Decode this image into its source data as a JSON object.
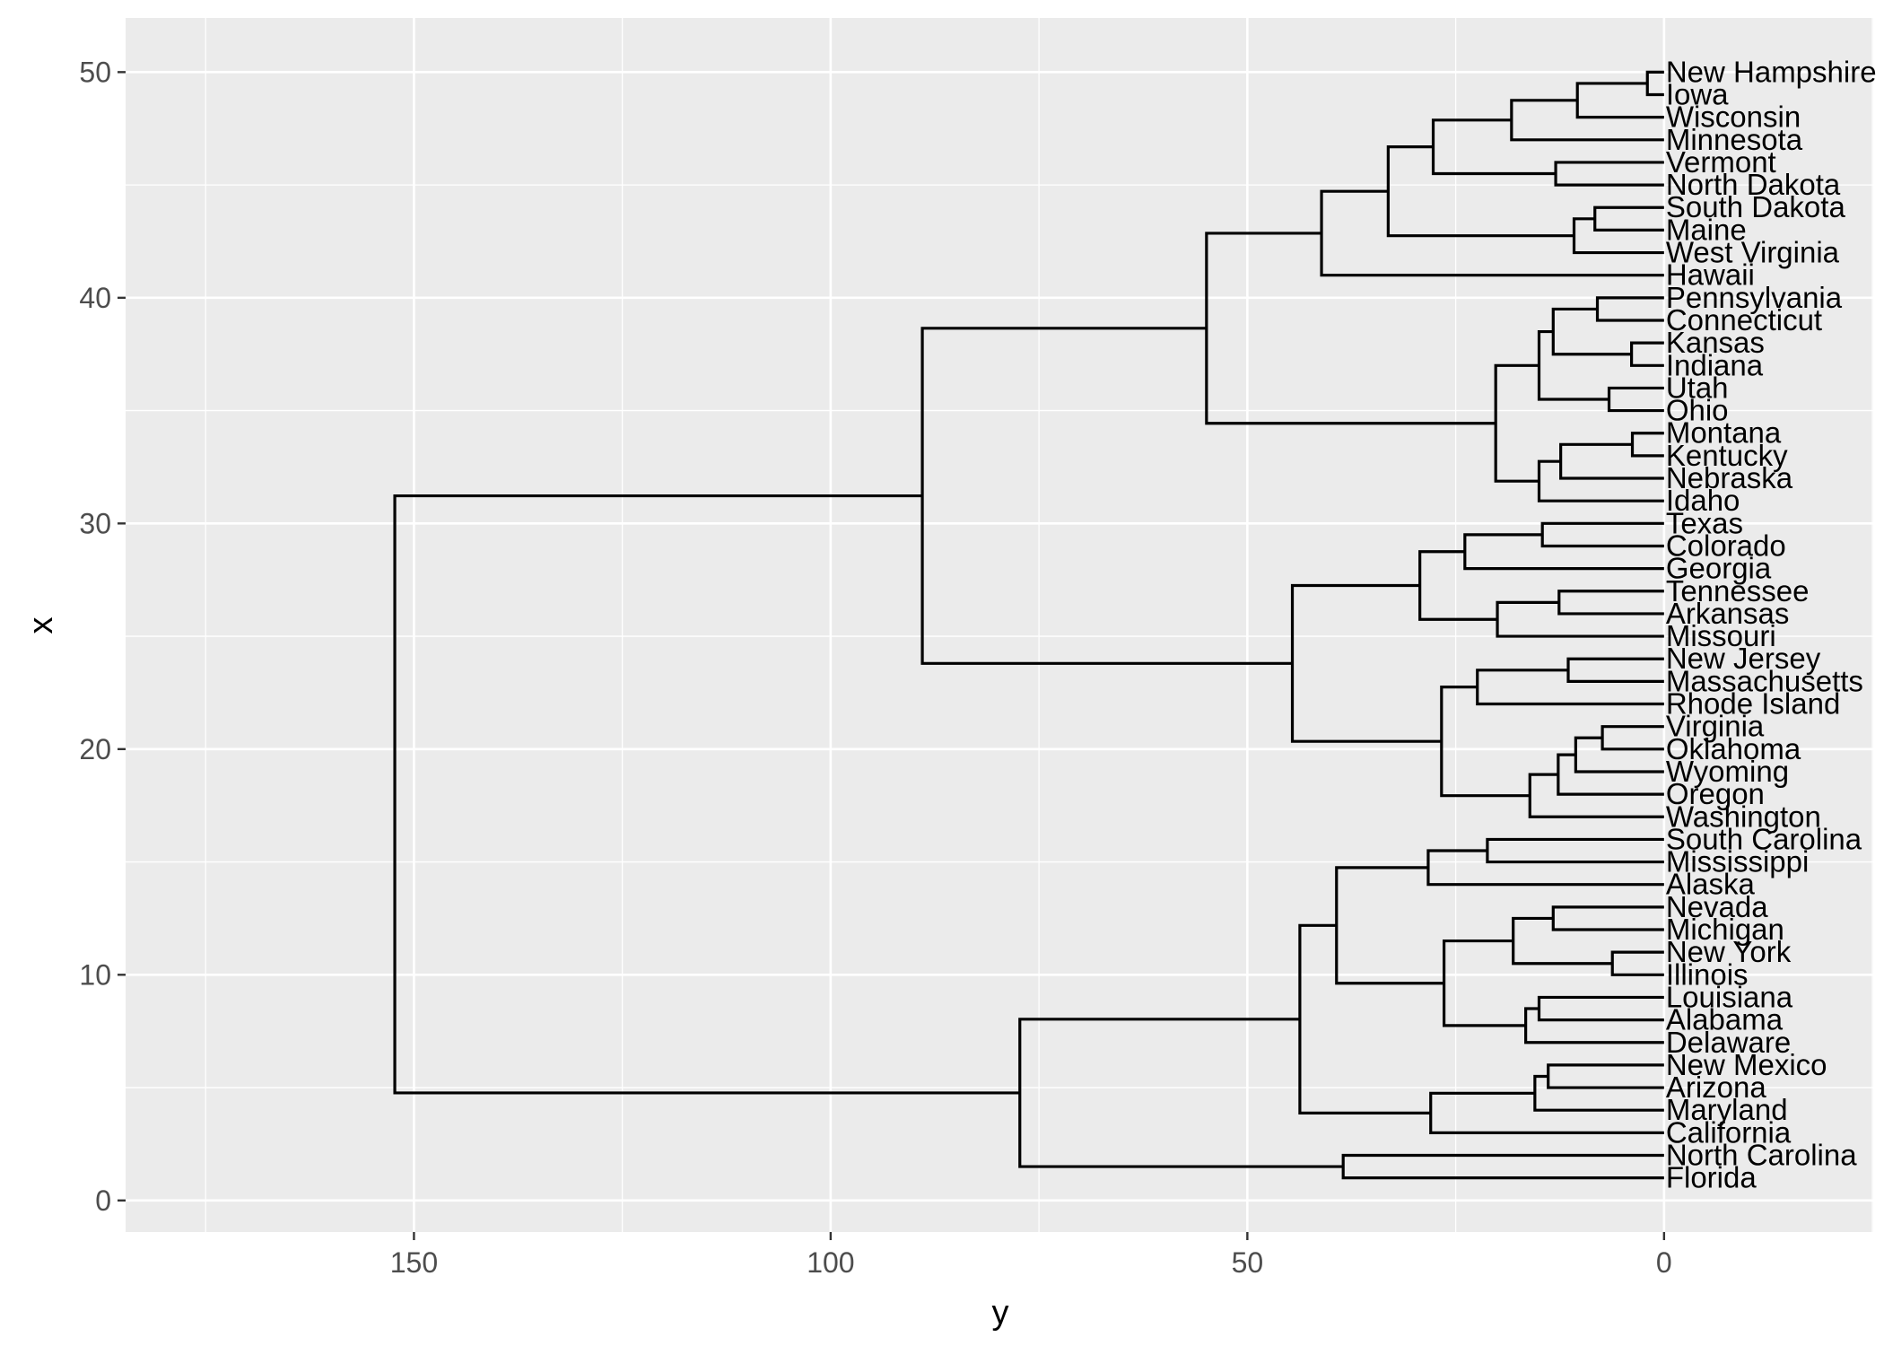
{
  "chart_data": {
    "type": "dendrogram",
    "orientation": "horizontal",
    "xlabel": "y",
    "ylabel": "x",
    "x_ticks": [
      150,
      100,
      50,
      0
    ],
    "y_ticks": [
      0,
      10,
      20,
      30,
      40,
      50
    ],
    "height_axis_reversed": true,
    "grid": true,
    "leaves": [
      "Florida",
      "North Carolina",
      "California",
      "Maryland",
      "Arizona",
      "New Mexico",
      "Delaware",
      "Alabama",
      "Louisiana",
      "Illinois",
      "New York",
      "Michigan",
      "Nevada",
      "Alaska",
      "Mississippi",
      "South Carolina",
      "Washington",
      "Oregon",
      "Wyoming",
      "Oklahoma",
      "Virginia",
      "Rhode Island",
      "Massachusetts",
      "New Jersey",
      "Missouri",
      "Arkansas",
      "Tennessee",
      "Georgia",
      "Colorado",
      "Texas",
      "Idaho",
      "Nebraska",
      "Kentucky",
      "Montana",
      "Ohio",
      "Utah",
      "Indiana",
      "Kansas",
      "Connecticut",
      "Pennsylvania",
      "Hawaii",
      "West Virginia",
      "Maine",
      "South Dakota",
      "North Dakota",
      "Vermont",
      "Minnesota",
      "Wisconsin",
      "Iowa",
      "New Hampshire"
    ],
    "merges": [
      {
        "height": 38.5,
        "children": [
          "Florida",
          "North Carolina"
        ]
      },
      {
        "height": 13.9,
        "children": [
          "Arizona",
          "New Mexico"
        ]
      },
      {
        "height": 15.5,
        "children": [
          "Maryland",
          "m1"
        ]
      },
      {
        "height": 28.0,
        "children": [
          "California",
          "m2"
        ]
      },
      {
        "height": 15.0,
        "children": [
          "Alabama",
          "Louisiana"
        ]
      },
      {
        "height": 16.6,
        "children": [
          "Delaware",
          "m4"
        ]
      },
      {
        "height": 6.2,
        "children": [
          "Illinois",
          "New York"
        ]
      },
      {
        "height": 13.3,
        "children": [
          "Michigan",
          "Nevada"
        ]
      },
      {
        "height": 18.1,
        "children": [
          "m6",
          "m7"
        ]
      },
      {
        "height": 26.4,
        "children": [
          "m5",
          "m8"
        ]
      },
      {
        "height": 21.2,
        "children": [
          "Mississippi",
          "South Carolina"
        ]
      },
      {
        "height": 28.3,
        "children": [
          "Alaska",
          "m10"
        ]
      },
      {
        "height": 39.3,
        "children": [
          "m9",
          "m11"
        ]
      },
      {
        "height": 43.7,
        "children": [
          "m3",
          "m12"
        ]
      },
      {
        "height": 77.3,
        "children": [
          "m0",
          "m13"
        ]
      },
      {
        "height": 7.4,
        "children": [
          "Oklahoma",
          "Virginia"
        ]
      },
      {
        "height": 10.6,
        "children": [
          "Wyoming",
          "m15"
        ]
      },
      {
        "height": 12.7,
        "children": [
          "Oregon",
          "m16"
        ]
      },
      {
        "height": 16.1,
        "children": [
          "Washington",
          "m17"
        ]
      },
      {
        "height": 11.5,
        "children": [
          "Massachusetts",
          "New Jersey"
        ]
      },
      {
        "height": 22.4,
        "children": [
          "Rhode Island",
          "m19"
        ]
      },
      {
        "height": 26.7,
        "children": [
          "m18",
          "m20"
        ]
      },
      {
        "height": 12.6,
        "children": [
          "Arkansas",
          "Tennessee"
        ]
      },
      {
        "height": 20.0,
        "children": [
          "Missouri",
          "m22"
        ]
      },
      {
        "height": 14.6,
        "children": [
          "Colorado",
          "Texas"
        ]
      },
      {
        "height": 23.9,
        "children": [
          "Georgia",
          "m24"
        ]
      },
      {
        "height": 29.3,
        "children": [
          "m23",
          "m25"
        ]
      },
      {
        "height": 44.6,
        "children": [
          "m21",
          "m26"
        ]
      },
      {
        "height": 3.8,
        "children": [
          "Kentucky",
          "Montana"
        ]
      },
      {
        "height": 12.4,
        "children": [
          "Nebraska",
          "m28"
        ]
      },
      {
        "height": 15.0,
        "children": [
          "Idaho",
          "m29"
        ]
      },
      {
        "height": 6.6,
        "children": [
          "Ohio",
          "Utah"
        ]
      },
      {
        "height": 3.9,
        "children": [
          "Indiana",
          "Kansas"
        ]
      },
      {
        "height": 8.0,
        "children": [
          "Connecticut",
          "Pennsylvania"
        ]
      },
      {
        "height": 13.3,
        "children": [
          "m32",
          "m33"
        ]
      },
      {
        "height": 15.0,
        "children": [
          "m31",
          "m34"
        ]
      },
      {
        "height": 20.2,
        "children": [
          "m30",
          "m35"
        ]
      },
      {
        "height": 8.3,
        "children": [
          "Maine",
          "South Dakota"
        ]
      },
      {
        "height": 10.8,
        "children": [
          "West Virginia",
          "m37"
        ]
      },
      {
        "height": 13.0,
        "children": [
          "North Dakota",
          "Vermont"
        ]
      },
      {
        "height": 2.0,
        "children": [
          "Iowa",
          "New Hampshire"
        ]
      },
      {
        "height": 10.4,
        "children": [
          "Wisconsin",
          "m40"
        ]
      },
      {
        "height": 18.3,
        "children": [
          "Minnesota",
          "m41"
        ]
      },
      {
        "height": 27.7,
        "children": [
          "m39",
          "m42"
        ]
      },
      {
        "height": 33.1,
        "children": [
          "m38",
          "m43"
        ]
      },
      {
        "height": 41.1,
        "children": [
          "Hawaii",
          "m44"
        ]
      },
      {
        "height": 54.9,
        "children": [
          "m36",
          "m45"
        ]
      },
      {
        "height": 89.0,
        "children": [
          "m27",
          "m46"
        ]
      },
      {
        "height": 152.3,
        "children": [
          "m14",
          "m47"
        ]
      }
    ]
  }
}
